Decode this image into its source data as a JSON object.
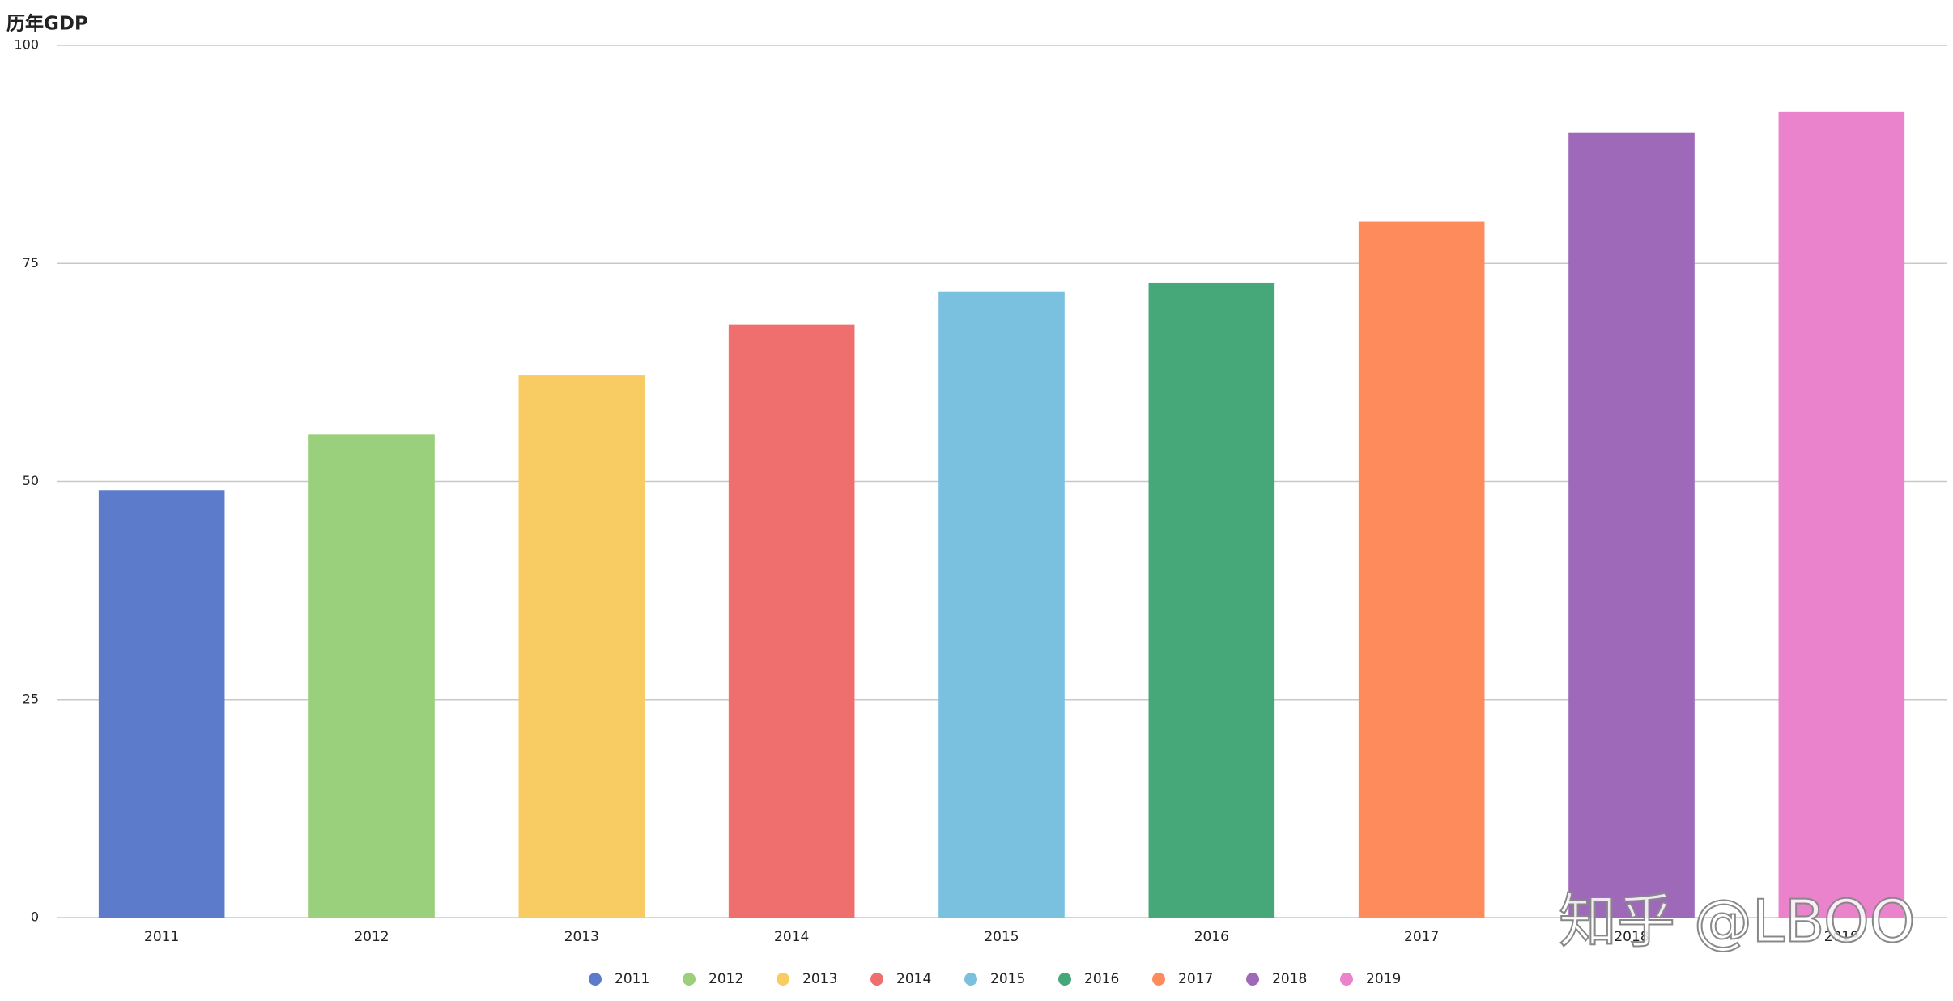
{
  "chart_data": {
    "type": "bar",
    "title": "历年GDP",
    "categories": [
      "2011",
      "2012",
      "2013",
      "2014",
      "2015",
      "2016",
      "2017",
      "2018",
      "2019"
    ],
    "values": [
      49,
      55.4,
      62.2,
      68,
      71.8,
      72.8,
      79.8,
      90,
      92.4
    ],
    "colors": [
      "#5d7bcb",
      "#9acf7c",
      "#f8cb63",
      "#ee6f6e",
      "#7ac1e0",
      "#46a779",
      "#fd8b5b",
      "#9e69b9",
      "#ea83cc"
    ],
    "ylim": [
      0,
      100
    ],
    "yticks": [
      0,
      25,
      50,
      75,
      100
    ],
    "grid": true,
    "legend": "bottom",
    "watermark": "知乎 @LBOO"
  }
}
